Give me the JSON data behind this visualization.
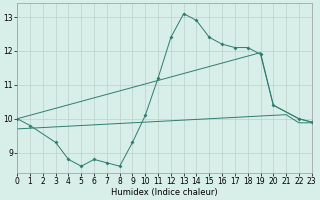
{
  "line1_x": [
    0,
    1,
    3,
    4,
    5,
    6,
    7,
    8,
    9,
    10,
    11,
    12,
    13,
    14,
    15,
    16,
    17,
    18,
    19,
    20,
    22,
    23
  ],
  "line1_y": [
    10.0,
    9.8,
    9.3,
    8.8,
    8.6,
    8.8,
    8.7,
    8.6,
    9.3,
    10.1,
    11.2,
    12.4,
    13.1,
    12.9,
    12.4,
    12.2,
    12.1,
    12.1,
    11.9,
    10.4,
    10.0,
    9.9
  ],
  "line2_x": [
    0,
    19,
    20,
    22,
    23
  ],
  "line2_y": [
    10.0,
    11.95,
    10.4,
    10.0,
    9.9
  ],
  "line3_x": [
    0,
    1,
    2,
    3,
    4,
    5,
    6,
    7,
    8,
    9,
    10,
    11,
    12,
    13,
    14,
    15,
    16,
    17,
    18,
    19,
    20,
    21,
    22,
    23
  ],
  "line3_y": [
    9.7,
    9.72,
    9.74,
    9.76,
    9.78,
    9.8,
    9.82,
    9.84,
    9.86,
    9.88,
    9.9,
    9.92,
    9.94,
    9.96,
    9.98,
    10.0,
    10.02,
    10.04,
    10.06,
    10.08,
    10.1,
    10.12,
    9.88,
    9.88
  ],
  "color": "#2E7D6E",
  "bg_color": "#D8EEE8",
  "grid_color": "#BCD0C8",
  "xlabel": "Humidex (Indice chaleur)",
  "ylim": [
    8.4,
    13.4
  ],
  "xlim": [
    0,
    23
  ],
  "yticks": [
    9,
    10,
    11,
    12,
    13
  ],
  "xticks": [
    0,
    1,
    2,
    3,
    4,
    5,
    6,
    7,
    8,
    9,
    10,
    11,
    12,
    13,
    14,
    15,
    16,
    17,
    18,
    19,
    20,
    21,
    22,
    23
  ]
}
